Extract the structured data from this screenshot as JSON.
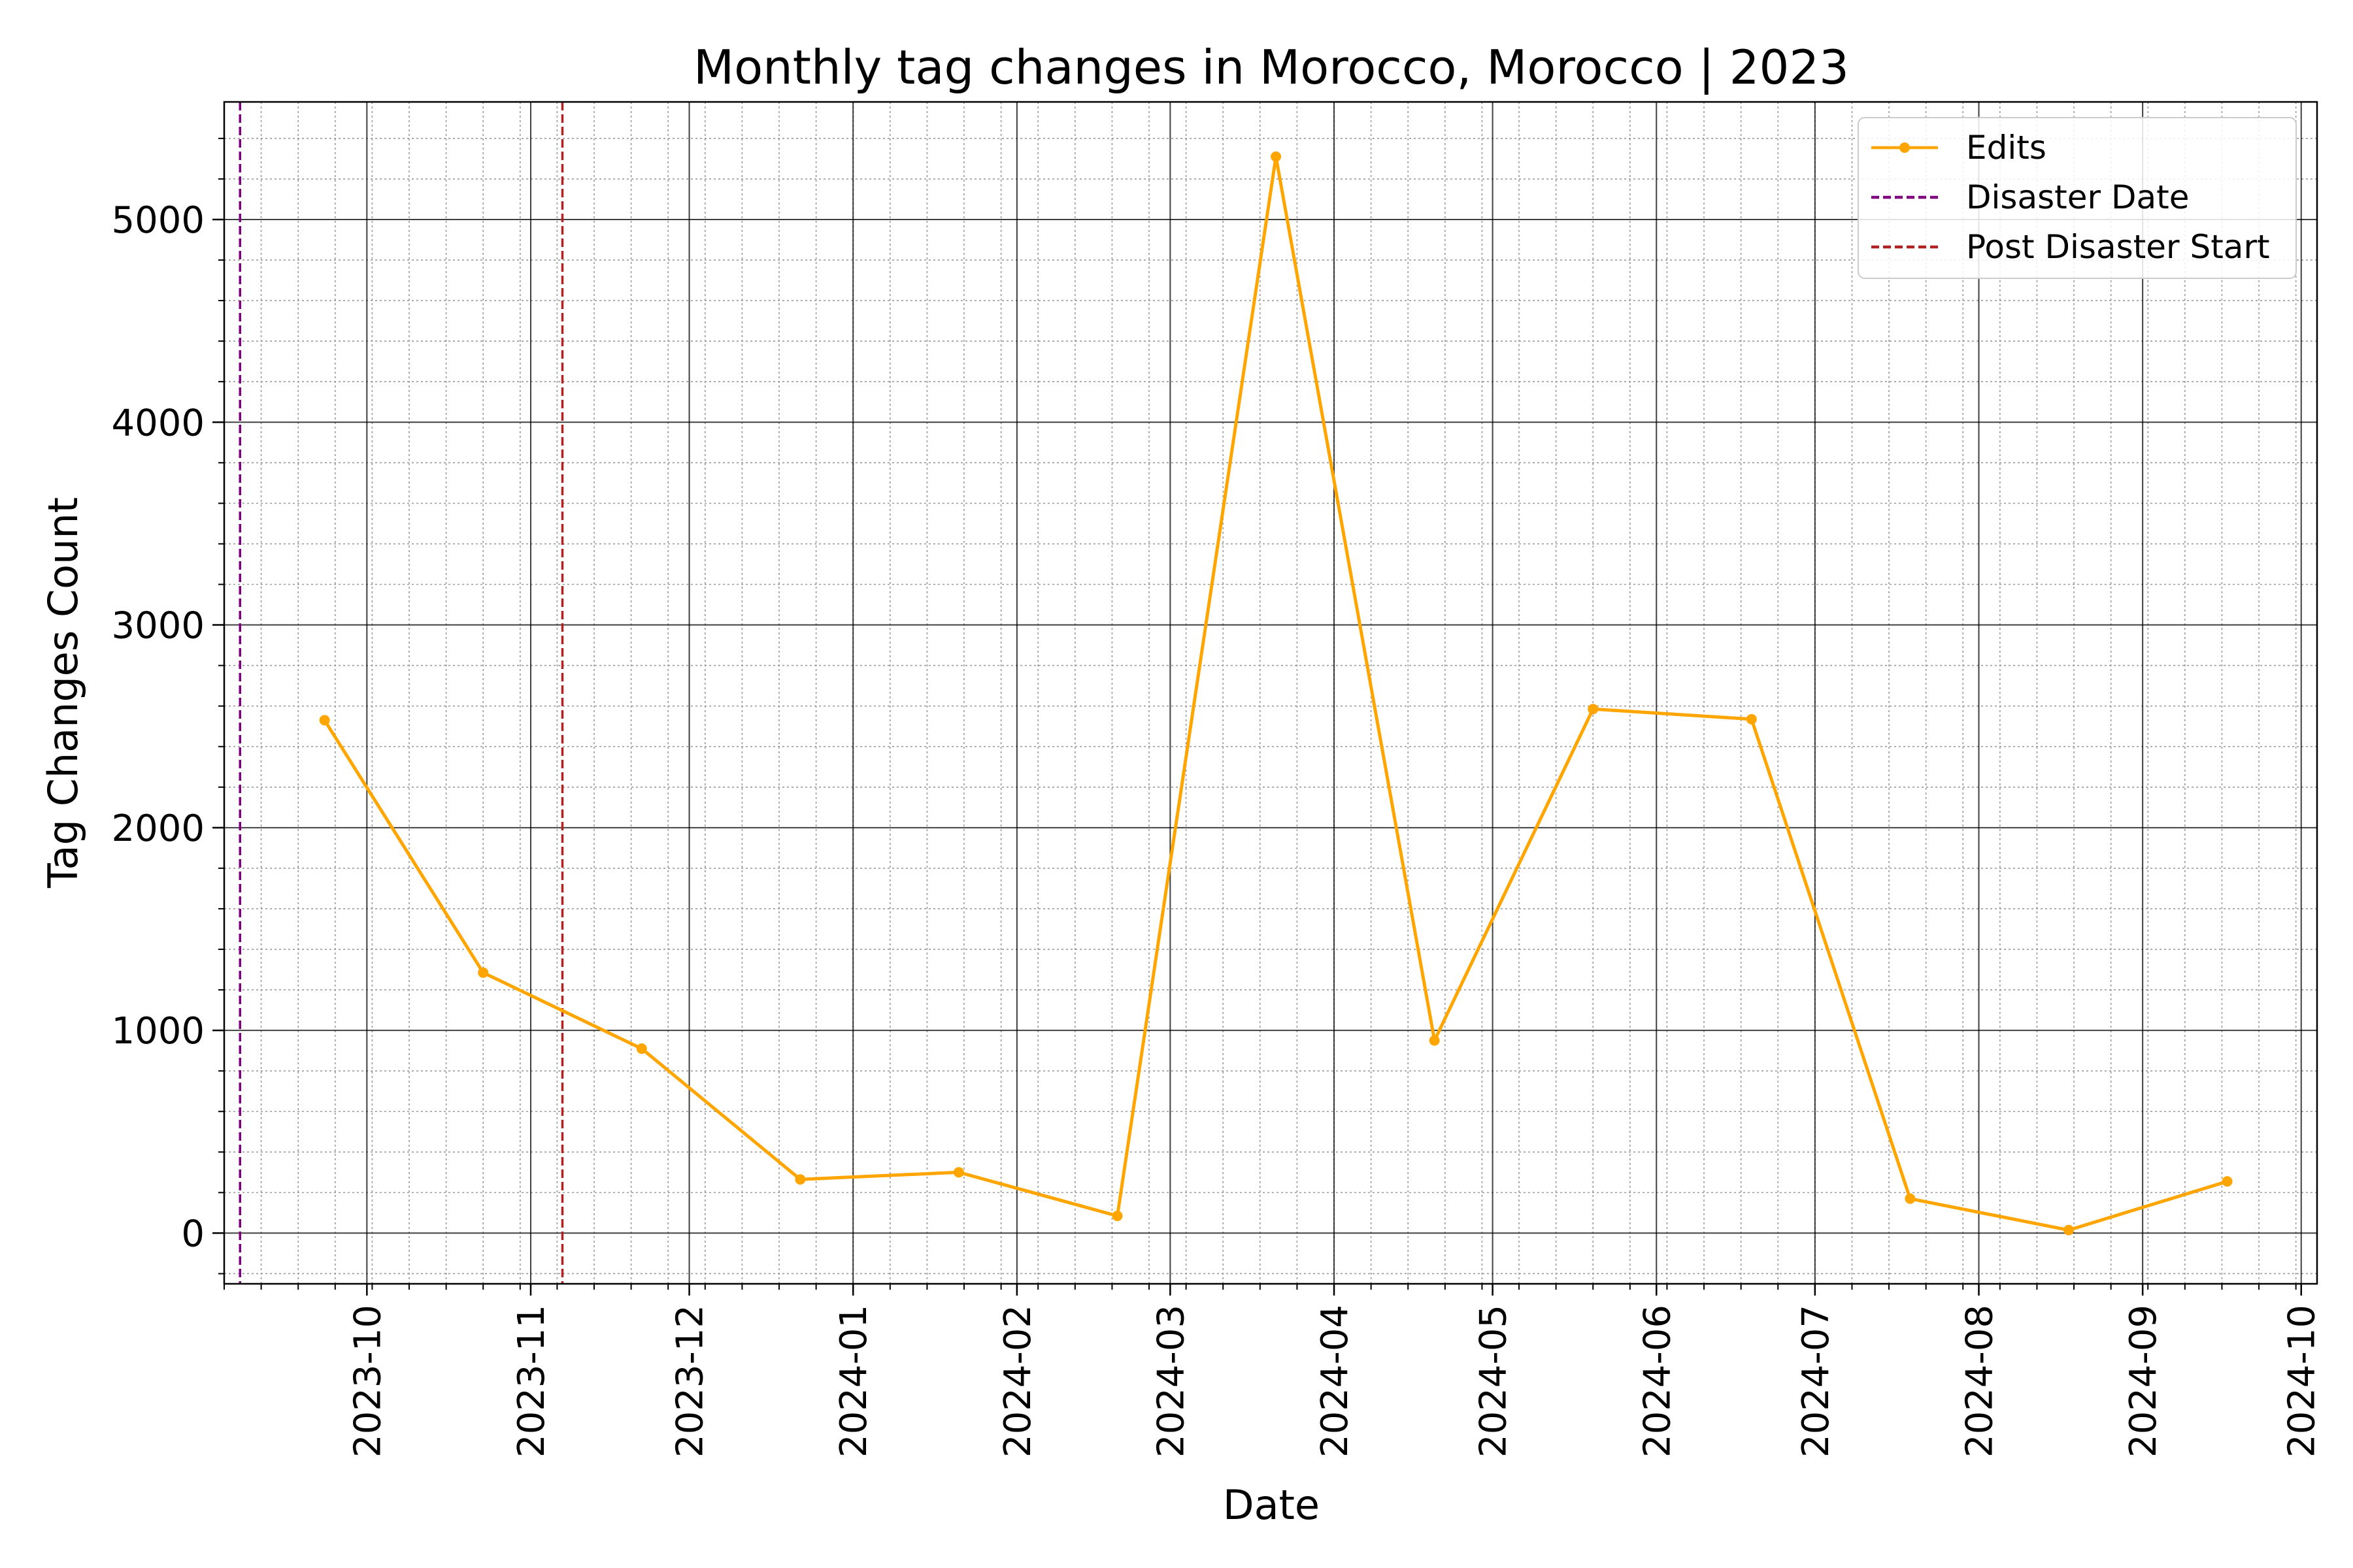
{
  "chart_data": {
    "type": "line",
    "title": "Monthly tag changes in Morocco, Morocco | 2023",
    "xlabel": "Date",
    "ylabel": "Tag Changes Count",
    "xlim": [
      "2023-09-04",
      "2024-10-04"
    ],
    "ylim": [
      -250,
      5580
    ],
    "x_ticks": [
      "2023-10",
      "2023-11",
      "2023-12",
      "2024-01",
      "2024-02",
      "2024-03",
      "2024-04",
      "2024-05",
      "2024-06",
      "2024-07",
      "2024-08",
      "2024-09",
      "2024-10"
    ],
    "y_ticks": [
      0,
      1000,
      2000,
      3000,
      4000,
      5000
    ],
    "grid": true,
    "minor_grid": true,
    "legend_position": "top-right",
    "series": [
      {
        "name": "Edits",
        "color": "#FFA500",
        "style": "solid-line-with-dot-markers",
        "x": [
          "2023-09-23",
          "2023-10-23",
          "2023-11-22",
          "2023-12-22",
          "2024-01-21",
          "2024-02-20",
          "2024-03-21",
          "2024-04-20",
          "2024-05-20",
          "2024-06-19",
          "2024-07-19",
          "2024-08-18",
          "2024-09-17"
        ],
        "values": [
          2530,
          1285,
          910,
          265,
          300,
          85,
          5310,
          950,
          2585,
          2535,
          170,
          15,
          255
        ]
      }
    ],
    "reference_lines": [
      {
        "name": "Disaster Date",
        "x": "2023-09-07",
        "color": "#800080",
        "style": "dashed"
      },
      {
        "name": "Post Disaster Start",
        "x": "2023-11-07",
        "color": "#B22222",
        "style": "dashed"
      }
    ]
  }
}
